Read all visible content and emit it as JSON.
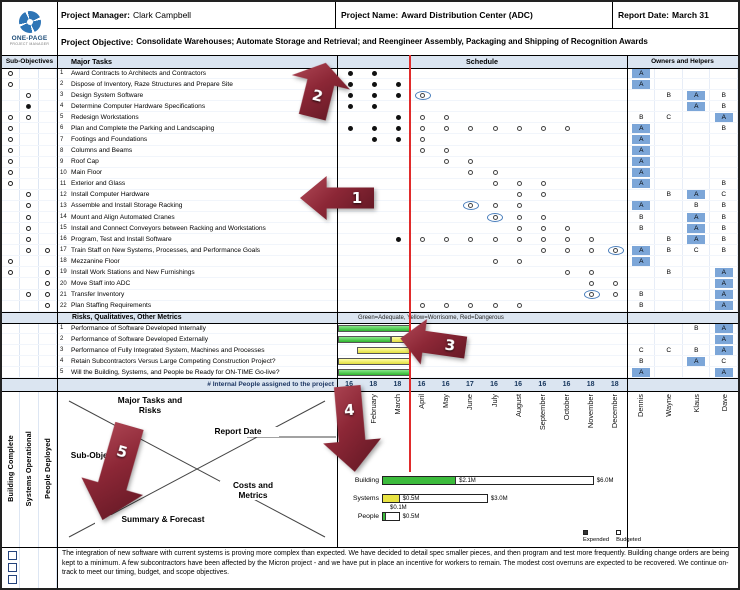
{
  "header": {
    "pm_label": "Project Manager:",
    "pm_value": "Clark Campbell",
    "name_label": "Project Name:",
    "name_value": "Award Distribution Center (ADC)",
    "date_label": "Report Date:",
    "date_value": "March 31",
    "objective_label": "Project Objective:",
    "objective_value": "Consolidate Warehouses; Automate Storage and Retrieval; and Reengineer Assembly, Packaging and Shipping of Recognition Awards"
  },
  "logo": {
    "line1": "ONE-PAGE",
    "line2": "PROJECT MANAGER"
  },
  "column_headers": {
    "sub_objectives": "Sub-Objectives",
    "major_tasks": "Major Tasks",
    "schedule": "Schedule",
    "owners": "Owners and Helpers"
  },
  "months": [
    "January",
    "February",
    "March",
    "April",
    "May",
    "June",
    "July",
    "August",
    "September",
    "October",
    "November",
    "December"
  ],
  "owner_names": [
    "Dennis",
    "Wayne",
    "Klaus",
    "Dave"
  ],
  "tasks": [
    {
      "num": 1,
      "name": "Award Contracts to Architects and Contractors",
      "sub": "o..",
      "sched": "FF..........",
      "own": "A..."
    },
    {
      "num": 2,
      "name": "Dispose of Inventory, Raze Structures and Prepare Site",
      "sub": "o..",
      "sched": "FFF.........",
      "own": "A..."
    },
    {
      "num": 3,
      "name": "Design System Software",
      "sub": ".o.",
      "sched": "FFFR........",
      "own": ".BAB"
    },
    {
      "num": 4,
      "name": "Determine Computer Hardware Specifications",
      "sub": ".f.",
      "sched": "FF..........",
      "own": "..AB"
    },
    {
      "num": 5,
      "name": "Redesign Workstations",
      "sub": "oo.",
      "sched": "..FOO.......",
      "own": "BC.A"
    },
    {
      "num": 6,
      "name": "Plan and Complete the Parking and Landscaping",
      "sub": "o..",
      "sched": "FFFOOOOOOO..",
      "own": "A..B"
    },
    {
      "num": 7,
      "name": "Footings and Foundations",
      "sub": "o..",
      "sched": ".FFO........",
      "own": "A..."
    },
    {
      "num": 8,
      "name": "Columns and Beams",
      "sub": "o..",
      "sched": "...OO.......",
      "own": "A..."
    },
    {
      "num": 9,
      "name": "Roof Cap",
      "sub": "o..",
      "sched": "....OO......",
      "own": "A..."
    },
    {
      "num": 10,
      "name": "Main Floor",
      "sub": "o..",
      "sched": ".....OO.....",
      "own": "A..."
    },
    {
      "num": 11,
      "name": "Exterior and Glass",
      "sub": "o..",
      "sched": "......OOO...",
      "own": "A..B"
    },
    {
      "num": 12,
      "name": "Install Computer Hardware",
      "sub": ".o.",
      "sched": ".......OO...",
      "own": ".BAC"
    },
    {
      "num": 13,
      "name": "Assemble and Install Storage Racking",
      "sub": ".o.",
      "sched": ".....ROO....",
      "own": "A.BB"
    },
    {
      "num": 14,
      "name": "Mount and Align Automated Cranes",
      "sub": ".o.",
      "sched": "......ROO...",
      "own": "B.AB"
    },
    {
      "num": 15,
      "name": "Install and Connect Conveyors between Racking and Workstations",
      "sub": ".o.",
      "sched": ".......OOO..",
      "own": "B.AB"
    },
    {
      "num": 16,
      "name": "Program, Test and Install Software",
      "sub": ".o.",
      "sched": "..FOOOOOOOO.",
      "own": ".BAB"
    },
    {
      "num": 17,
      "name": "Train Staff on New Systems, Processes, and Performance Goals",
      "sub": ".oo",
      "sched": "........OOOR",
      "own": "ABCB"
    },
    {
      "num": 18,
      "name": "Mezzanine Floor",
      "sub": "o..",
      "sched": "......OO....",
      "own": "A..."
    },
    {
      "num": 19,
      "name": "Install Work Stations and New Furnishings",
      "sub": "o.o",
      "sched": ".........OO.",
      "own": ".B.A"
    },
    {
      "num": 20,
      "name": "Move Staff into ADC",
      "sub": "..o",
      "sched": "..........OO",
      "own": "...A"
    },
    {
      "num": 21,
      "name": "Transfer Inventory",
      "sub": ".oo",
      "sched": "..........RO",
      "own": "B..A"
    },
    {
      "num": 22,
      "name": "Plan Staffing Requirements",
      "sub": "..o",
      "sched": "...OOOOO....",
      "own": "B..A"
    }
  ],
  "risks": {
    "title": "Risks, Qualitatives, Other Metrics",
    "legend": "Green=Adequate, Yellow=Worrisome, Red=Dangerous",
    "items": [
      {
        "num": 1,
        "name": "Performance of Software Developed Internally",
        "bars": [
          [
            "g",
            0,
            3
          ]
        ],
        "own": "..BA"
      },
      {
        "num": 2,
        "name": "Performance of Software Developed Externally",
        "bars": [
          [
            "g",
            0,
            2.2
          ],
          [
            "y",
            2.2,
            3
          ]
        ],
        "own": "...A"
      },
      {
        "num": 3,
        "name": "Performance of Fully Integrated System, Machines and Processes",
        "bars": [
          [
            "y",
            0.8,
            3
          ]
        ],
        "own": "CCBA"
      },
      {
        "num": 4,
        "name": "Retain Subcontractors Versus Large Competing Construction Project?",
        "bars": [
          [
            "y",
            0,
            3
          ]
        ],
        "own": "B.AC"
      },
      {
        "num": 5,
        "name": "Will the Building, Systems, and People be Ready for ON-TIME Go-live?",
        "bars": [
          [
            "g",
            0,
            3
          ]
        ],
        "own": "A..A"
      }
    ]
  },
  "people_row": {
    "label": "# Internal People assigned to the project",
    "values": [
      16,
      18,
      18,
      16,
      16,
      17,
      16,
      16,
      16,
      16,
      18,
      18
    ]
  },
  "left_labels": [
    "Building Complete",
    "Systems Operational",
    "People Deployed"
  ],
  "diagram_labels": {
    "tasks": "Major Tasks and Risks",
    "report": "Report Date",
    "subobjectives": "Sub-Objectives",
    "costs": "Costs and Metrics",
    "summary": "Summary & Forecast"
  },
  "chart_data": {
    "type": "bar",
    "orientation": "horizontal",
    "title": "Costs and Metrics",
    "categories": [
      "Building",
      "Systems",
      "People"
    ],
    "series": [
      {
        "name": "Expended",
        "values": [
          2.1,
          0.5,
          0.1
        ]
      },
      {
        "name": "Budgeted",
        "values": [
          6.0,
          3.0,
          0.5
        ]
      }
    ],
    "value_labels": {
      "expended": [
        "$2.1M",
        "$0.5M",
        "$0.1M"
      ],
      "budgeted": [
        "$6.0M",
        "$3.0M",
        "$0.5M"
      ]
    },
    "unit": "$M",
    "xlim": [
      0,
      6.5
    ],
    "expended_colors": [
      "#3cbb3c",
      "#e8e342",
      "#3cbb3c"
    ],
    "legend": [
      "Expended",
      "Budgeted"
    ],
    "legend_position": "bottom-right"
  },
  "summary_text": "The integration of new software with current systems is proving more complex than expected. We have decided to detail spec smaller pieces, and then program and test more frequently. Building change orders are being kept to a minimum. A few subcontractors have been affected by the Micron project - and we have put in place an incentive for workers to remain. The modest cost overruns are expected to be recovered. We continue on-track to meet our timing, budget, and scope objectives.",
  "callouts": [
    "1",
    "2",
    "3",
    "4",
    "5"
  ],
  "colors": {
    "band_blue": "#dbe5f1",
    "owner_a_blue": "#7ca6d8",
    "today_line_red": "#e02b2b",
    "risk_green": "#2eb52e",
    "risk_yellow": "#e2de3f",
    "callout_maroon": "#8c2736"
  }
}
